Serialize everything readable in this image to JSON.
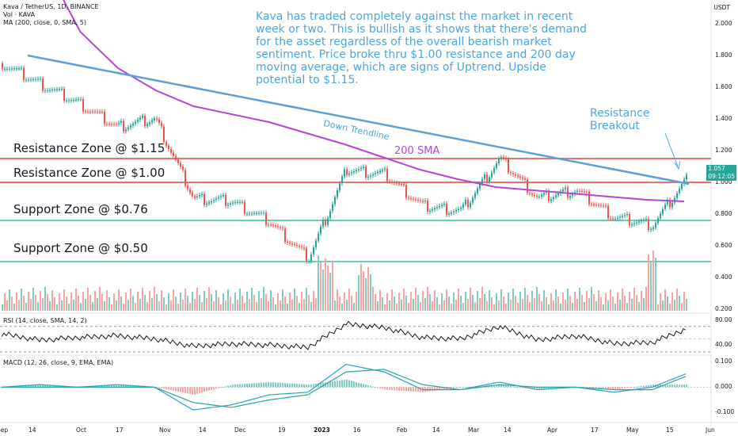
{
  "legend": {
    "symbol": "Kava / TetherUS, 1D, BINANCE",
    "volume": "Vol · KAVA",
    "ma": "MA (200, close, 0, SMA, 5)",
    "rsi": "RSI (14, close, SMA, 14, 2)",
    "macd": "MACD (12, 26, close, 9, EMA, EMA)"
  },
  "annotations": {
    "commentary": "Kava has traded completely against the market in recent week or two. This is bullish as it shows that there's demand for the asset regardless of the overall bearish market sentiment. Price broke thru $1.00 resistance and 200 day moving average, which are signs of Uptrend. Upside potential to $1.15.",
    "resistance_breakout": "Resistance Breakout",
    "down_trendline": "Down Trendline",
    "sma_label": "200 SMA"
  },
  "zones": [
    {
      "label": "Resistance Zone @ $1.15",
      "price": 1.15,
      "color": "#e57373",
      "text_color": "#b22833"
    },
    {
      "label": "Resistance Zone @ $1.00",
      "price": 1.0,
      "color": "#e57373",
      "text_color": "#b22833"
    },
    {
      "label": "Support Zone @ $0.76",
      "price": 0.76,
      "color": "#66d1b3",
      "text_color": "#26a69a"
    },
    {
      "label": "Support Zone @ $0.50",
      "price": 0.5,
      "color": "#66d1b3",
      "text_color": "#26a69a"
    }
  ],
  "colors": {
    "up": "#26a69a",
    "down": "#ef5350",
    "vol_up": "#80cbc4",
    "vol_down": "#f7a5a3",
    "trendline": "#5b9fd6",
    "sma": "#b545d6",
    "macd": "#26a0c8",
    "signal": "#26a69a",
    "current_price_bg": "#26a69a"
  },
  "axes": {
    "currency": "USDT",
    "price_ticks": [
      "2.000",
      "1.800",
      "1.600",
      "1.400",
      "1.200",
      "1.000",
      "0.800",
      "0.600",
      "0.400",
      "0.200"
    ],
    "current_price": "1.057",
    "current_sub": "09:12:05",
    "rsi_ticks": [
      "80.00",
      "40.00"
    ],
    "macd_ticks": [
      "0.100",
      "0.000",
      "-0.100"
    ],
    "time_ticks": [
      "Sep",
      "14",
      "Oct",
      "17",
      "Nov",
      "14",
      "Dec",
      "19",
      "2023",
      "16",
      "Feb",
      "14",
      "Mar",
      "14",
      "Apr",
      "17",
      "May",
      "15",
      "Jun"
    ]
  },
  "chart_data": [
    {
      "type": "line",
      "title": "Kava / TetherUS, 1D, BINANCE",
      "description_series": "Approximate daily close path (candlestick chart)",
      "x": [
        "Sep",
        "14",
        "Oct",
        "17",
        "Nov",
        "14",
        "Dec",
        "19",
        "2023",
        "16",
        "Feb",
        "14",
        "Mar",
        "14",
        "Apr",
        "17",
        "May",
        "15",
        "Jun"
      ],
      "series": [
        {
          "name": "Price (close, approx.)",
          "values": [
            1.75,
            1.62,
            1.5,
            1.35,
            1.4,
            0.9,
            0.88,
            0.75,
            0.52,
            1.08,
            1.05,
            0.85,
            0.82,
            1.15,
            0.9,
            0.95,
            0.78,
            0.73,
            1.057
          ]
        },
        {
          "name": "MA (200, close, 0, SMA, 5)",
          "values": [
            null,
            2.4,
            1.95,
            1.72,
            1.58,
            1.48,
            1.43,
            1.38,
            1.31,
            1.24,
            1.16,
            1.08,
            1.02,
            0.97,
            0.95,
            0.93,
            0.91,
            0.89,
            0.88
          ]
        }
      ],
      "ylim": [
        0.2,
        2.1
      ],
      "ylabel": "USDT",
      "annotations_prices": {
        "resistance_high": 1.15,
        "resistance": 1.0,
        "support": 0.76,
        "support_low": 0.5
      }
    },
    {
      "type": "line",
      "title": "RSI (14, close, SMA, 14, 2)",
      "ylim": [
        30,
        85
      ],
      "series": [
        {
          "name": "RSI",
          "values": [
            58,
            48,
            52,
            55,
            50,
            38,
            42,
            40,
            36,
            74,
            68,
            52,
            50,
            70,
            48,
            55,
            42,
            44,
            69
          ]
        }
      ]
    },
    {
      "type": "line",
      "title": "MACD (12, 26, close, 9, EMA, EMA)",
      "ylim": [
        -0.13,
        0.12
      ],
      "series": [
        {
          "name": "MACD",
          "values": [
            0.0,
            0.01,
            0.0,
            0.01,
            0.0,
            -0.09,
            -0.07,
            -0.03,
            -0.02,
            0.09,
            0.06,
            -0.01,
            -0.01,
            0.02,
            -0.01,
            0.0,
            -0.02,
            0.0,
            0.06
          ]
        },
        {
          "name": "Signal",
          "values": [
            0.0,
            0.0,
            0.0,
            0.0,
            0.0,
            -0.06,
            -0.08,
            -0.05,
            -0.03,
            0.06,
            0.07,
            0.01,
            -0.01,
            0.01,
            0.0,
            0.0,
            -0.01,
            -0.01,
            0.05
          ]
        }
      ]
    }
  ]
}
